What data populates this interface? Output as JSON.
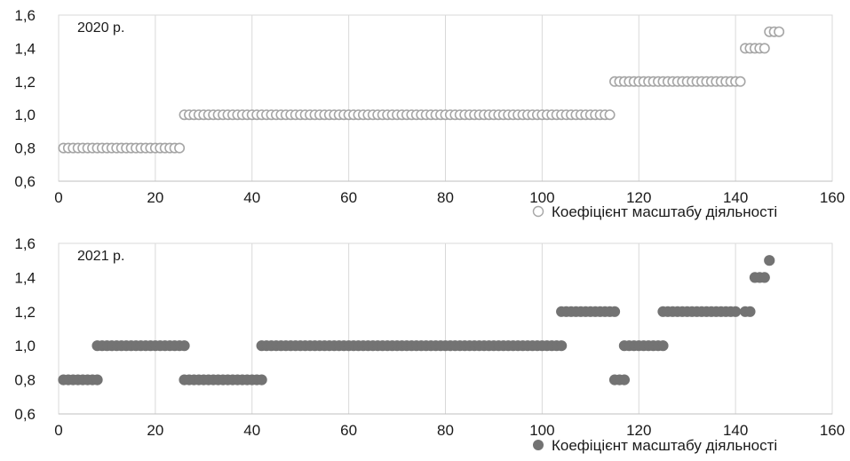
{
  "chart_data": [
    {
      "type": "scatter",
      "panel_label": "2020 р.",
      "xlim": [
        0,
        160
      ],
      "ylim": [
        0.6,
        1.6
      ],
      "x_ticks": [
        "0",
        "20",
        "40",
        "60",
        "80",
        "100",
        "120",
        "140",
        "160"
      ],
      "y_ticks": [
        "0,6",
        "0,8",
        "1,0",
        "1,2",
        "1,4",
        "1,6"
      ],
      "grid": "vertical",
      "legend": "bottom-right",
      "marker": "hollow",
      "color": "#a6a6a6",
      "series": [
        {
          "name": "Коефіцієнт масштабу діяльності",
          "segments": [
            {
              "x_from": 1,
              "x_to": 25,
              "y": 0.8
            },
            {
              "x_from": 26,
              "x_to": 114,
              "y": 1.0
            },
            {
              "x_from": 115,
              "x_to": 141,
              "y": 1.2
            },
            {
              "x_from": 142,
              "x_to": 146,
              "y": 1.4
            },
            {
              "x_from": 147,
              "x_to": 149,
              "y": 1.5
            }
          ]
        }
      ]
    },
    {
      "type": "scatter",
      "panel_label": "2021 р.",
      "xlim": [
        0,
        160
      ],
      "ylim": [
        0.6,
        1.6
      ],
      "x_ticks": [
        "0",
        "20",
        "40",
        "60",
        "80",
        "100",
        "120",
        "140",
        "160"
      ],
      "y_ticks": [
        "0,6",
        "0,8",
        "1,0",
        "1,2",
        "1,4",
        "1,6"
      ],
      "grid": "vertical",
      "legend": "bottom-right",
      "marker": "filled",
      "color": "#737373",
      "series": [
        {
          "name": "Коефіцієнт масштабу діяльності",
          "segments": [
            {
              "x_from": 1,
              "x_to": 8,
              "y": 0.8
            },
            {
              "x_from": 8,
              "x_to": 26,
              "y": 1.0
            },
            {
              "x_from": 26,
              "x_to": 42,
              "y": 0.8
            },
            {
              "x_from": 42,
              "x_to": 104,
              "y": 1.0
            },
            {
              "x_from": 104,
              "x_to": 115,
              "y": 1.2
            },
            {
              "x_from": 115,
              "x_to": 117,
              "y": 0.8
            },
            {
              "x_from": 117,
              "x_to": 125,
              "y": 1.0
            },
            {
              "x_from": 125,
              "x_to": 140,
              "y": 1.2
            },
            {
              "x_from": 142,
              "x_to": 143,
              "y": 1.2
            },
            {
              "x_from": 144,
              "x_to": 146,
              "y": 1.4
            },
            {
              "x_from": 147,
              "x_to": 147,
              "y": 1.5
            }
          ]
        }
      ]
    }
  ]
}
